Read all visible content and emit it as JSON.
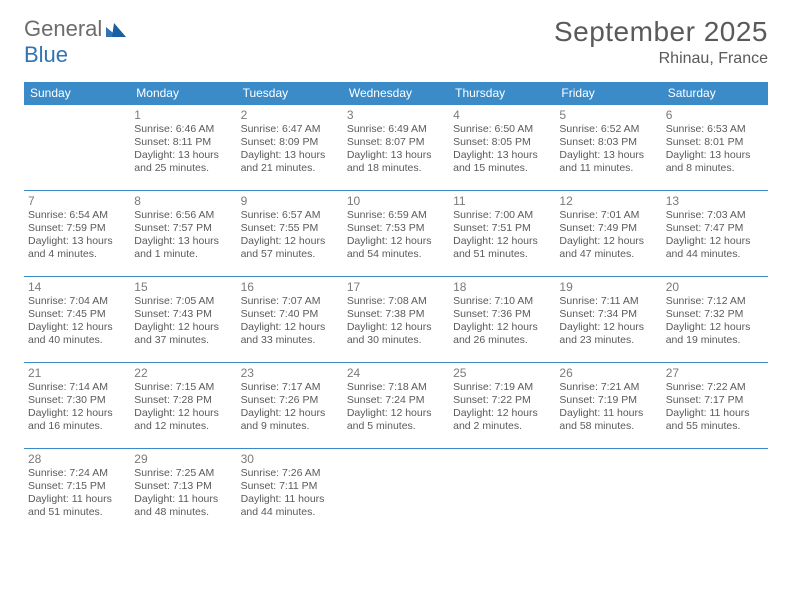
{
  "brand": {
    "part1": "General",
    "part2": "Blue"
  },
  "title": "September 2025",
  "location": "Rhinau, France",
  "colors": {
    "header_bg": "#3b8bc9",
    "header_text": "#ffffff",
    "row_border": "#3b8bc9",
    "text": "#5a5a5a",
    "brand_blue": "#2f74b5"
  },
  "dow": [
    "Sunday",
    "Monday",
    "Tuesday",
    "Wednesday",
    "Thursday",
    "Friday",
    "Saturday"
  ],
  "weeks": [
    [
      null,
      {
        "n": "1",
        "sr": "Sunrise: 6:46 AM",
        "ss": "Sunset: 8:11 PM",
        "d1": "Daylight: 13 hours",
        "d2": "and 25 minutes."
      },
      {
        "n": "2",
        "sr": "Sunrise: 6:47 AM",
        "ss": "Sunset: 8:09 PM",
        "d1": "Daylight: 13 hours",
        "d2": "and 21 minutes."
      },
      {
        "n": "3",
        "sr": "Sunrise: 6:49 AM",
        "ss": "Sunset: 8:07 PM",
        "d1": "Daylight: 13 hours",
        "d2": "and 18 minutes."
      },
      {
        "n": "4",
        "sr": "Sunrise: 6:50 AM",
        "ss": "Sunset: 8:05 PM",
        "d1": "Daylight: 13 hours",
        "d2": "and 15 minutes."
      },
      {
        "n": "5",
        "sr": "Sunrise: 6:52 AM",
        "ss": "Sunset: 8:03 PM",
        "d1": "Daylight: 13 hours",
        "d2": "and 11 minutes."
      },
      {
        "n": "6",
        "sr": "Sunrise: 6:53 AM",
        "ss": "Sunset: 8:01 PM",
        "d1": "Daylight: 13 hours",
        "d2": "and 8 minutes."
      }
    ],
    [
      {
        "n": "7",
        "sr": "Sunrise: 6:54 AM",
        "ss": "Sunset: 7:59 PM",
        "d1": "Daylight: 13 hours",
        "d2": "and 4 minutes."
      },
      {
        "n": "8",
        "sr": "Sunrise: 6:56 AM",
        "ss": "Sunset: 7:57 PM",
        "d1": "Daylight: 13 hours",
        "d2": "and 1 minute."
      },
      {
        "n": "9",
        "sr": "Sunrise: 6:57 AM",
        "ss": "Sunset: 7:55 PM",
        "d1": "Daylight: 12 hours",
        "d2": "and 57 minutes."
      },
      {
        "n": "10",
        "sr": "Sunrise: 6:59 AM",
        "ss": "Sunset: 7:53 PM",
        "d1": "Daylight: 12 hours",
        "d2": "and 54 minutes."
      },
      {
        "n": "11",
        "sr": "Sunrise: 7:00 AM",
        "ss": "Sunset: 7:51 PM",
        "d1": "Daylight: 12 hours",
        "d2": "and 51 minutes."
      },
      {
        "n": "12",
        "sr": "Sunrise: 7:01 AM",
        "ss": "Sunset: 7:49 PM",
        "d1": "Daylight: 12 hours",
        "d2": "and 47 minutes."
      },
      {
        "n": "13",
        "sr": "Sunrise: 7:03 AM",
        "ss": "Sunset: 7:47 PM",
        "d1": "Daylight: 12 hours",
        "d2": "and 44 minutes."
      }
    ],
    [
      {
        "n": "14",
        "sr": "Sunrise: 7:04 AM",
        "ss": "Sunset: 7:45 PM",
        "d1": "Daylight: 12 hours",
        "d2": "and 40 minutes."
      },
      {
        "n": "15",
        "sr": "Sunrise: 7:05 AM",
        "ss": "Sunset: 7:43 PM",
        "d1": "Daylight: 12 hours",
        "d2": "and 37 minutes."
      },
      {
        "n": "16",
        "sr": "Sunrise: 7:07 AM",
        "ss": "Sunset: 7:40 PM",
        "d1": "Daylight: 12 hours",
        "d2": "and 33 minutes."
      },
      {
        "n": "17",
        "sr": "Sunrise: 7:08 AM",
        "ss": "Sunset: 7:38 PM",
        "d1": "Daylight: 12 hours",
        "d2": "and 30 minutes."
      },
      {
        "n": "18",
        "sr": "Sunrise: 7:10 AM",
        "ss": "Sunset: 7:36 PM",
        "d1": "Daylight: 12 hours",
        "d2": "and 26 minutes."
      },
      {
        "n": "19",
        "sr": "Sunrise: 7:11 AM",
        "ss": "Sunset: 7:34 PM",
        "d1": "Daylight: 12 hours",
        "d2": "and 23 minutes."
      },
      {
        "n": "20",
        "sr": "Sunrise: 7:12 AM",
        "ss": "Sunset: 7:32 PM",
        "d1": "Daylight: 12 hours",
        "d2": "and 19 minutes."
      }
    ],
    [
      {
        "n": "21",
        "sr": "Sunrise: 7:14 AM",
        "ss": "Sunset: 7:30 PM",
        "d1": "Daylight: 12 hours",
        "d2": "and 16 minutes."
      },
      {
        "n": "22",
        "sr": "Sunrise: 7:15 AM",
        "ss": "Sunset: 7:28 PM",
        "d1": "Daylight: 12 hours",
        "d2": "and 12 minutes."
      },
      {
        "n": "23",
        "sr": "Sunrise: 7:17 AM",
        "ss": "Sunset: 7:26 PM",
        "d1": "Daylight: 12 hours",
        "d2": "and 9 minutes."
      },
      {
        "n": "24",
        "sr": "Sunrise: 7:18 AM",
        "ss": "Sunset: 7:24 PM",
        "d1": "Daylight: 12 hours",
        "d2": "and 5 minutes."
      },
      {
        "n": "25",
        "sr": "Sunrise: 7:19 AM",
        "ss": "Sunset: 7:22 PM",
        "d1": "Daylight: 12 hours",
        "d2": "and 2 minutes."
      },
      {
        "n": "26",
        "sr": "Sunrise: 7:21 AM",
        "ss": "Sunset: 7:19 PM",
        "d1": "Daylight: 11 hours",
        "d2": "and 58 minutes."
      },
      {
        "n": "27",
        "sr": "Sunrise: 7:22 AM",
        "ss": "Sunset: 7:17 PM",
        "d1": "Daylight: 11 hours",
        "d2": "and 55 minutes."
      }
    ],
    [
      {
        "n": "28",
        "sr": "Sunrise: 7:24 AM",
        "ss": "Sunset: 7:15 PM",
        "d1": "Daylight: 11 hours",
        "d2": "and 51 minutes."
      },
      {
        "n": "29",
        "sr": "Sunrise: 7:25 AM",
        "ss": "Sunset: 7:13 PM",
        "d1": "Daylight: 11 hours",
        "d2": "and 48 minutes."
      },
      {
        "n": "30",
        "sr": "Sunrise: 7:26 AM",
        "ss": "Sunset: 7:11 PM",
        "d1": "Daylight: 11 hours",
        "d2": "and 44 minutes."
      },
      null,
      null,
      null,
      null
    ]
  ]
}
